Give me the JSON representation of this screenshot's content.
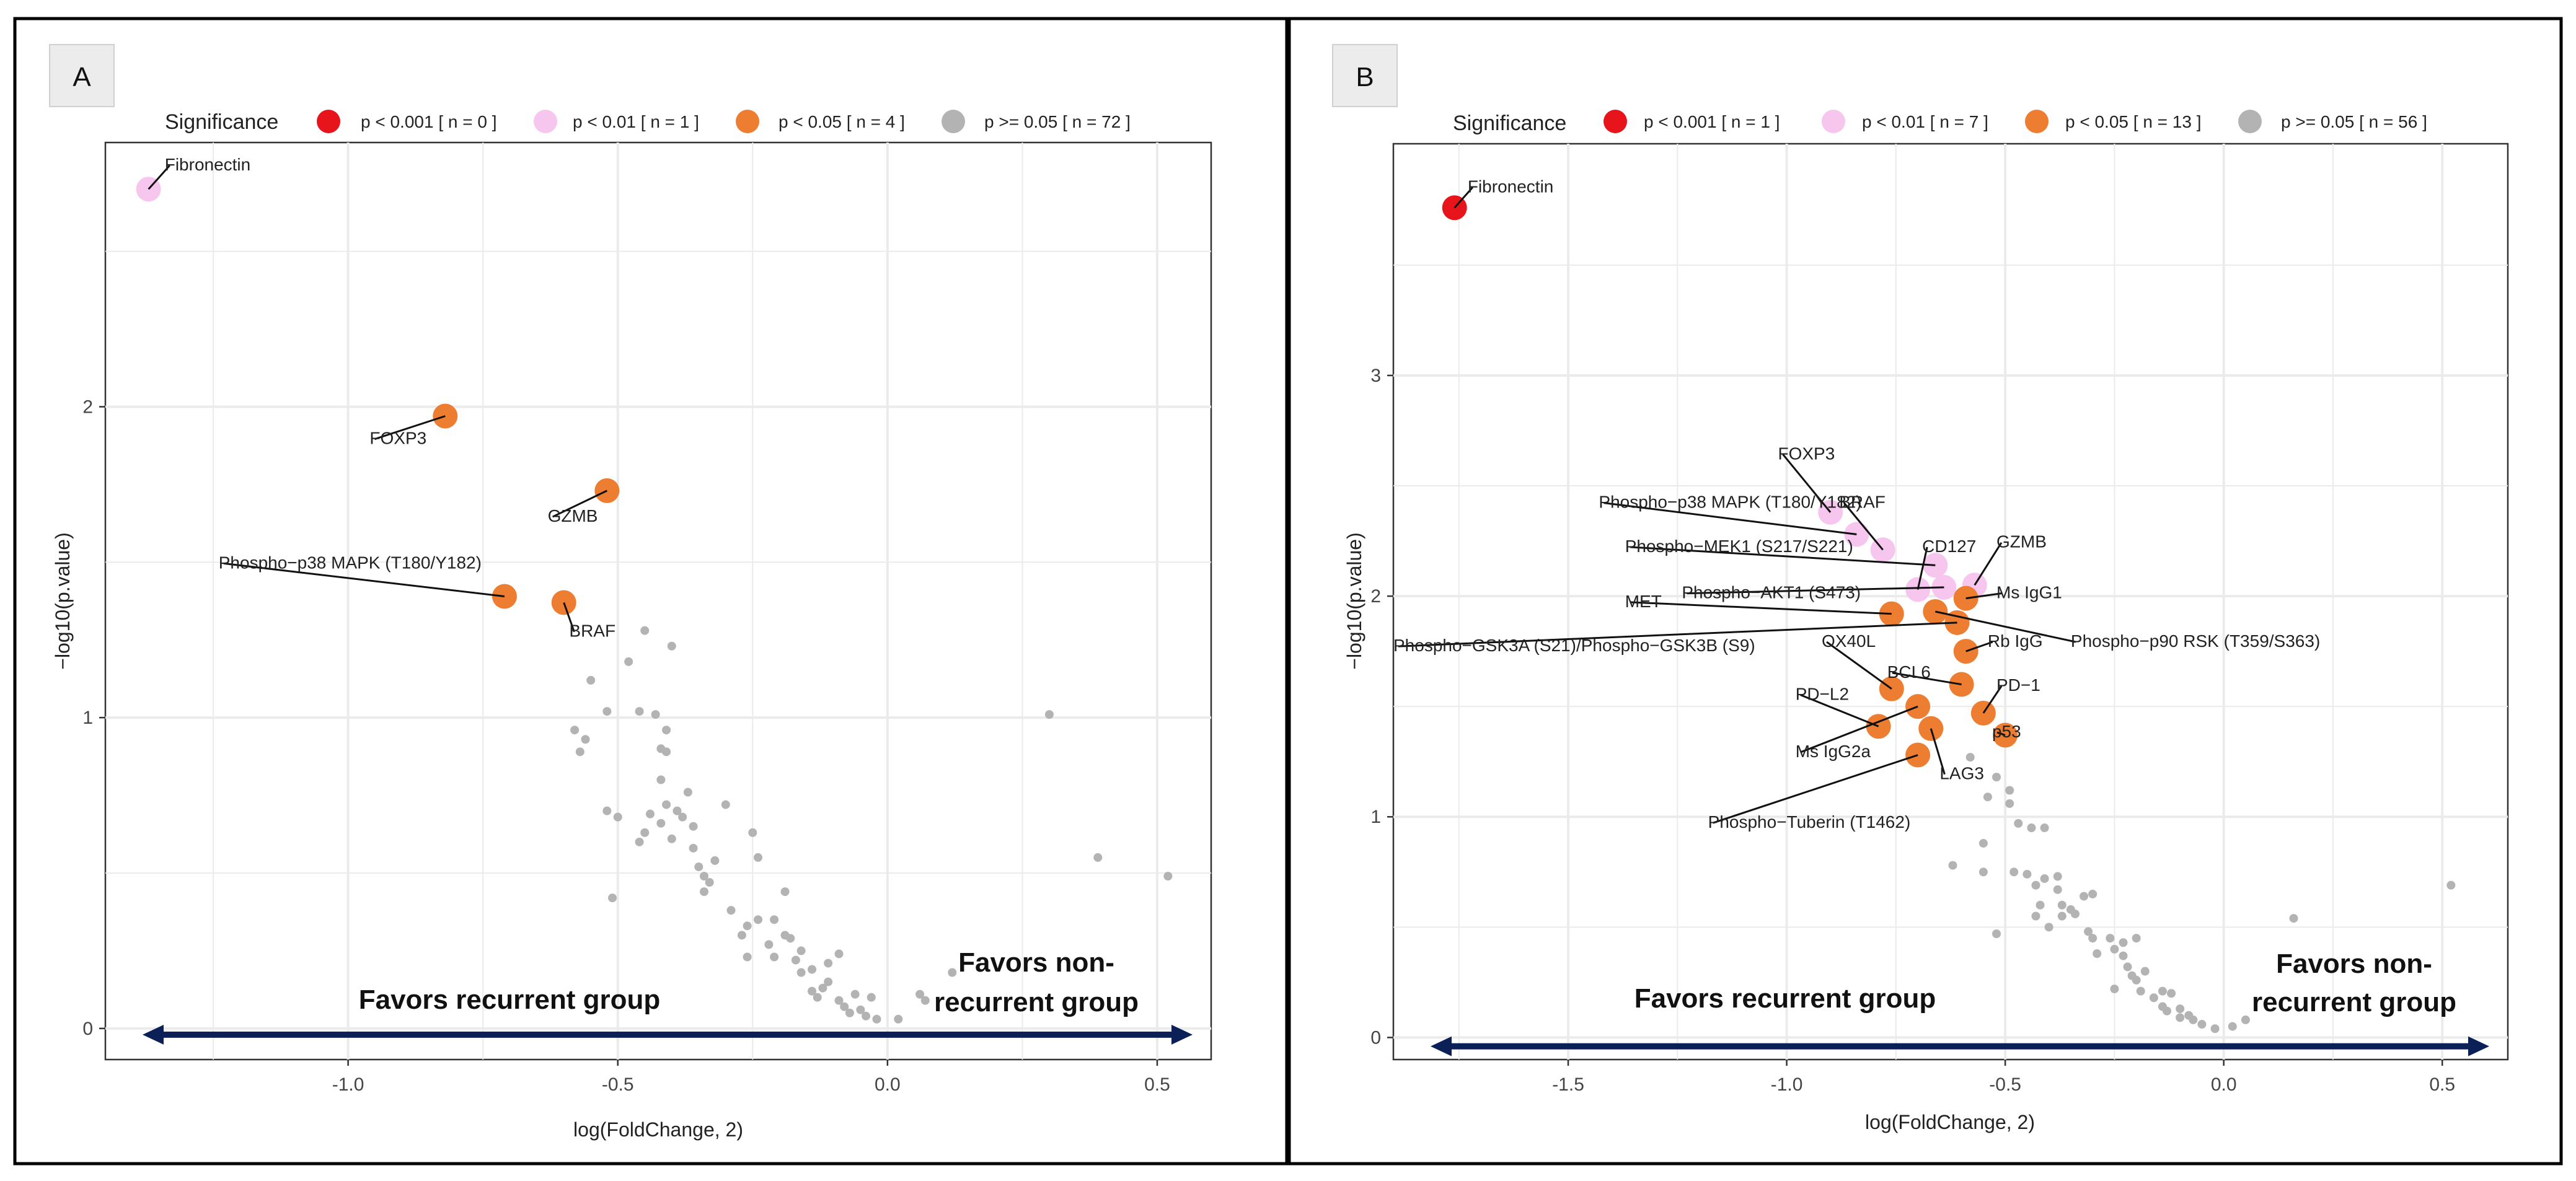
{
  "colors": {
    "p001": "#e8141c",
    "p01": "#f7c6ef",
    "p05": "#ed7d31",
    "pns": "#b3b3b3",
    "arrow": "#0c2058",
    "frame": "#000000",
    "grid": "#ebebeb"
  },
  "chart_data": [
    {
      "type": "scatter",
      "panel_label": "A",
      "legend_title": "Significance",
      "legend": [
        {
          "key": "p001",
          "label": "p < 0.001 [ n = 0 ]"
        },
        {
          "key": "p01",
          "label": "p < 0.01 [ n = 1 ]"
        },
        {
          "key": "p05",
          "label": "p < 0.05 [ n = 4 ]"
        },
        {
          "key": "pns",
          "label": "p >= 0.05 [ n = 72 ]"
        }
      ],
      "xlabel": "log(FoldChange, 2)",
      "ylabel": "−log10(p.value)",
      "xlim": [
        -1.45,
        0.6
      ],
      "ylim": [
        -0.1,
        2.85
      ],
      "xticks": [
        -1.0,
        -0.5,
        0.0,
        0.5
      ],
      "xtick_labels": [
        "-1.0",
        "-0.5",
        "0.0",
        "0.5"
      ],
      "yticks": [
        0,
        1,
        2
      ],
      "ytick_labels": [
        "0",
        "1",
        "2"
      ],
      "arrow_y": -0.02,
      "annotation_left": "Favors recurrent group",
      "annotation_right_line1": "Favors non-",
      "annotation_right_line2": "recurrent group",
      "significant": [
        {
          "name": "Fibronectin",
          "x": -1.37,
          "y": 2.7,
          "sig": "p01",
          "lx": -1.34,
          "ly": 2.76,
          "anchor": "start"
        },
        {
          "name": "FOXP3",
          "x": -0.82,
          "y": 1.97,
          "sig": "p05",
          "lx": -0.96,
          "ly": 1.88,
          "anchor": "start"
        },
        {
          "name": "GZMB",
          "x": -0.52,
          "y": 1.73,
          "sig": "p05",
          "lx": -0.63,
          "ly": 1.63,
          "anchor": "start"
        },
        {
          "name": "Phospho−p38 MAPK (T180/Y182)",
          "x": -0.71,
          "y": 1.39,
          "sig": "p05",
          "lx": -1.24,
          "ly": 1.48,
          "anchor": "start"
        },
        {
          "name": "BRAF",
          "x": -0.6,
          "y": 1.37,
          "sig": "p05",
          "lx": -0.59,
          "ly": 1.26,
          "anchor": "start"
        }
      ],
      "nonsig": [
        [
          -0.45,
          1.28
        ],
        [
          -0.4,
          1.23
        ],
        [
          -0.48,
          1.18
        ],
        [
          -0.55,
          1.12
        ],
        [
          -0.52,
          1.02
        ],
        [
          -0.46,
          1.02
        ],
        [
          -0.43,
          1.01
        ],
        [
          -0.58,
          0.96
        ],
        [
          -0.41,
          0.96
        ],
        [
          -0.56,
          0.93
        ],
        [
          -0.57,
          0.89
        ],
        [
          -0.42,
          0.9
        ],
        [
          -0.41,
          0.89
        ],
        [
          -0.42,
          0.8
        ],
        [
          -0.37,
          0.76
        ],
        [
          -0.3,
          0.72
        ],
        [
          -0.41,
          0.72
        ],
        [
          -0.52,
          0.7
        ],
        [
          -0.44,
          0.69
        ],
        [
          -0.39,
          0.7
        ],
        [
          -0.38,
          0.68
        ],
        [
          -0.5,
          0.68
        ],
        [
          -0.42,
          0.66
        ],
        [
          -0.36,
          0.65
        ],
        [
          -0.25,
          0.63
        ],
        [
          -0.45,
          0.63
        ],
        [
          -0.4,
          0.61
        ],
        [
          -0.46,
          0.6
        ],
        [
          -0.24,
          0.55
        ],
        [
          -0.32,
          0.54
        ],
        [
          -0.35,
          0.52
        ],
        [
          -0.34,
          0.49
        ],
        [
          -0.33,
          0.47
        ],
        [
          -0.34,
          0.44
        ],
        [
          -0.19,
          0.44
        ],
        [
          -0.51,
          0.42
        ],
        [
          -0.24,
          0.35
        ],
        [
          -0.21,
          0.35
        ],
        [
          -0.26,
          0.33
        ],
        [
          -0.27,
          0.3
        ],
        [
          -0.19,
          0.3
        ],
        [
          -0.18,
          0.29
        ],
        [
          -0.16,
          0.25
        ],
        [
          -0.21,
          0.23
        ],
        [
          -0.09,
          0.24
        ],
        [
          -0.26,
          0.23
        ],
        [
          -0.17,
          0.22
        ],
        [
          -0.14,
          0.19
        ],
        [
          -0.11,
          0.21
        ],
        [
          -0.16,
          0.18
        ],
        [
          -0.11,
          0.15
        ],
        [
          -0.14,
          0.12
        ],
        [
          -0.06,
          0.11
        ],
        [
          -0.13,
          0.1
        ],
        [
          -0.09,
          0.09
        ],
        [
          -0.03,
          0.1
        ],
        [
          -0.08,
          0.07
        ],
        [
          -0.05,
          0.06
        ],
        [
          -0.04,
          0.04
        ],
        [
          -0.02,
          0.03
        ],
        [
          0.02,
          0.03
        ],
        [
          0.07,
          0.09
        ],
        [
          0.06,
          0.11
        ],
        [
          0.12,
          0.18
        ],
        [
          0.3,
          1.01
        ],
        [
          0.39,
          0.55
        ],
        [
          0.52,
          0.49
        ],
        [
          -0.12,
          0.13
        ],
        [
          -0.07,
          0.05
        ],
        [
          -0.22,
          0.27
        ],
        [
          -0.29,
          0.38
        ],
        [
          -0.36,
          0.58
        ]
      ]
    },
    {
      "type": "scatter",
      "panel_label": "B",
      "legend_title": "Significance",
      "legend": [
        {
          "key": "p001",
          "label": "p < 0.001 [ n = 1 ]"
        },
        {
          "key": "p01",
          "label": "p < 0.01 [ n = 7 ]"
        },
        {
          "key": "p05",
          "label": "p < 0.05 [ n = 13 ]"
        },
        {
          "key": "pns",
          "label": "p >= 0.05 [ n = 56 ]"
        }
      ],
      "xlabel": "log(FoldChange, 2)",
      "ylabel": "−log10(p.value)",
      "xlim": [
        -1.9,
        0.65
      ],
      "ylim": [
        -0.1,
        4.05
      ],
      "xticks": [
        -1.5,
        -1.0,
        -0.5,
        0.0,
        0.5
      ],
      "xtick_labels": [
        "-1.5",
        "-1.0",
        "-0.5",
        "0.0",
        "0.5"
      ],
      "yticks": [
        0,
        1,
        2,
        3
      ],
      "ytick_labels": [
        "0",
        "1",
        "2",
        "3"
      ],
      "arrow_y": -0.04,
      "annotation_left": "Favors recurrent group",
      "annotation_right_line1": "Favors non-",
      "annotation_right_line2": "recurrent group",
      "significant": [
        {
          "name": "Fibronectin",
          "x": -1.76,
          "y": 3.76,
          "sig": "p001",
          "lx": -1.73,
          "ly": 3.83,
          "anchor": "start"
        },
        {
          "name": "FOXP3",
          "x": -0.9,
          "y": 2.38,
          "sig": "p01",
          "lx": -1.02,
          "ly": 2.62,
          "anchor": "start"
        },
        {
          "name": "Phospho−p38 MAPK (T180/Y182)",
          "x": -0.84,
          "y": 2.28,
          "sig": "p01",
          "lx": -1.43,
          "ly": 2.4,
          "anchor": "start"
        },
        {
          "name": "BRAF",
          "x": -0.78,
          "y": 2.21,
          "sig": "p01",
          "lx": -0.88,
          "ly": 2.4,
          "anchor": "start"
        },
        {
          "name": "Phospho−MEK1 (S217/S221)",
          "x": -0.66,
          "y": 2.14,
          "sig": "p01",
          "lx": -1.37,
          "ly": 2.2,
          "anchor": "start"
        },
        {
          "name": "CD127",
          "x": -0.7,
          "y": 2.03,
          "sig": "p01",
          "lx": -0.69,
          "ly": 2.2,
          "anchor": "start"
        },
        {
          "name": "GZMB",
          "x": -0.57,
          "y": 2.05,
          "sig": "p01",
          "lx": -0.52,
          "ly": 2.22,
          "anchor": "start"
        },
        {
          "name": "Phospho−AKT1 (S473)",
          "x": -0.64,
          "y": 2.04,
          "sig": "p01",
          "lx": -1.24,
          "ly": 1.99,
          "anchor": "start"
        },
        {
          "name": "Ms IgG1",
          "x": -0.59,
          "y": 1.99,
          "sig": "p05",
          "lx": -0.52,
          "ly": 1.99,
          "anchor": "start"
        },
        {
          "name": "MET",
          "x": -0.76,
          "y": 1.92,
          "sig": "p05",
          "lx": -1.37,
          "ly": 1.95,
          "anchor": "start"
        },
        {
          "name": "Phospho−p90 RSK  (T359/S363)",
          "x": -0.66,
          "y": 1.93,
          "sig": "p05",
          "lx": -0.35,
          "ly": 1.77,
          "anchor": "start"
        },
        {
          "name": "Phospho−GSK3A (S21)/Phospho−GSK3B (S9)",
          "x": -0.61,
          "y": 1.88,
          "sig": "p05",
          "lx": -1.9,
          "ly": 1.75,
          "anchor": "start"
        },
        {
          "name": "OX40L",
          "x": -0.76,
          "y": 1.58,
          "sig": "p05",
          "lx": -0.92,
          "ly": 1.77,
          "anchor": "start"
        },
        {
          "name": "Rb IgG",
          "x": -0.59,
          "y": 1.75,
          "sig": "p05",
          "lx": -0.54,
          "ly": 1.77,
          "anchor": "start"
        },
        {
          "name": "BCL6",
          "x": -0.6,
          "y": 1.6,
          "sig": "p05",
          "lx": -0.77,
          "ly": 1.63,
          "anchor": "start"
        },
        {
          "name": "PD−1",
          "x": -0.55,
          "y": 1.47,
          "sig": "p05",
          "lx": -0.52,
          "ly": 1.57,
          "anchor": "start"
        },
        {
          "name": "PD−L2",
          "x": -0.79,
          "y": 1.41,
          "sig": "p05",
          "lx": -0.98,
          "ly": 1.53,
          "anchor": "start"
        },
        {
          "name": "Ms IgG2a",
          "x": -0.7,
          "y": 1.5,
          "sig": "p05",
          "lx": -0.98,
          "ly": 1.27,
          "anchor": "start"
        },
        {
          "name": "LAG3",
          "x": -0.67,
          "y": 1.4,
          "sig": "p05",
          "lx": -0.65,
          "ly": 1.17,
          "anchor": "start"
        },
        {
          "name": "p53",
          "x": -0.5,
          "y": 1.37,
          "sig": "p05",
          "lx": -0.53,
          "ly": 1.36,
          "anchor": "start"
        },
        {
          "name": "Phospho−Tuberin (T1462)",
          "x": -0.7,
          "y": 1.28,
          "sig": "p05",
          "lx": -1.18,
          "ly": 0.95,
          "anchor": "start"
        }
      ],
      "nonsig": [
        [
          -0.58,
          1.27
        ],
        [
          -0.52,
          1.18
        ],
        [
          -0.49,
          1.12
        ],
        [
          -0.54,
          1.09
        ],
        [
          -0.49,
          1.06
        ],
        [
          -0.47,
          0.97
        ],
        [
          -0.44,
          0.95
        ],
        [
          -0.41,
          0.95
        ],
        [
          -0.55,
          0.88
        ],
        [
          -0.62,
          0.78
        ],
        [
          -0.55,
          0.75
        ],
        [
          -0.48,
          0.75
        ],
        [
          -0.45,
          0.74
        ],
        [
          -0.41,
          0.72
        ],
        [
          -0.38,
          0.73
        ],
        [
          -0.43,
          0.69
        ],
        [
          -0.38,
          0.67
        ],
        [
          -0.3,
          0.65
        ],
        [
          -0.32,
          0.64
        ],
        [
          -0.42,
          0.6
        ],
        [
          -0.37,
          0.6
        ],
        [
          -0.43,
          0.55
        ],
        [
          -0.34,
          0.56
        ],
        [
          -0.37,
          0.55
        ],
        [
          -0.4,
          0.5
        ],
        [
          -0.52,
          0.47
        ],
        [
          -0.3,
          0.45
        ],
        [
          -0.26,
          0.45
        ],
        [
          -0.23,
          0.43
        ],
        [
          -0.2,
          0.45
        ],
        [
          -0.25,
          0.4
        ],
        [
          -0.29,
          0.38
        ],
        [
          -0.23,
          0.37
        ],
        [
          -0.22,
          0.32
        ],
        [
          -0.18,
          0.3
        ],
        [
          -0.21,
          0.28
        ],
        [
          -0.2,
          0.26
        ],
        [
          -0.19,
          0.21
        ],
        [
          -0.14,
          0.21
        ],
        [
          -0.12,
          0.2
        ],
        [
          -0.16,
          0.18
        ],
        [
          -0.14,
          0.14
        ],
        [
          -0.1,
          0.13
        ],
        [
          -0.13,
          0.12
        ],
        [
          -0.1,
          0.09
        ],
        [
          -0.07,
          0.08
        ],
        [
          -0.05,
          0.06
        ],
        [
          -0.02,
          0.04
        ],
        [
          0.02,
          0.05
        ],
        [
          0.05,
          0.08
        ],
        [
          0.16,
          0.54
        ],
        [
          0.52,
          0.69
        ],
        [
          -0.25,
          0.22
        ],
        [
          -0.08,
          0.1
        ],
        [
          -0.31,
          0.48
        ],
        [
          -0.35,
          0.58
        ]
      ]
    }
  ]
}
